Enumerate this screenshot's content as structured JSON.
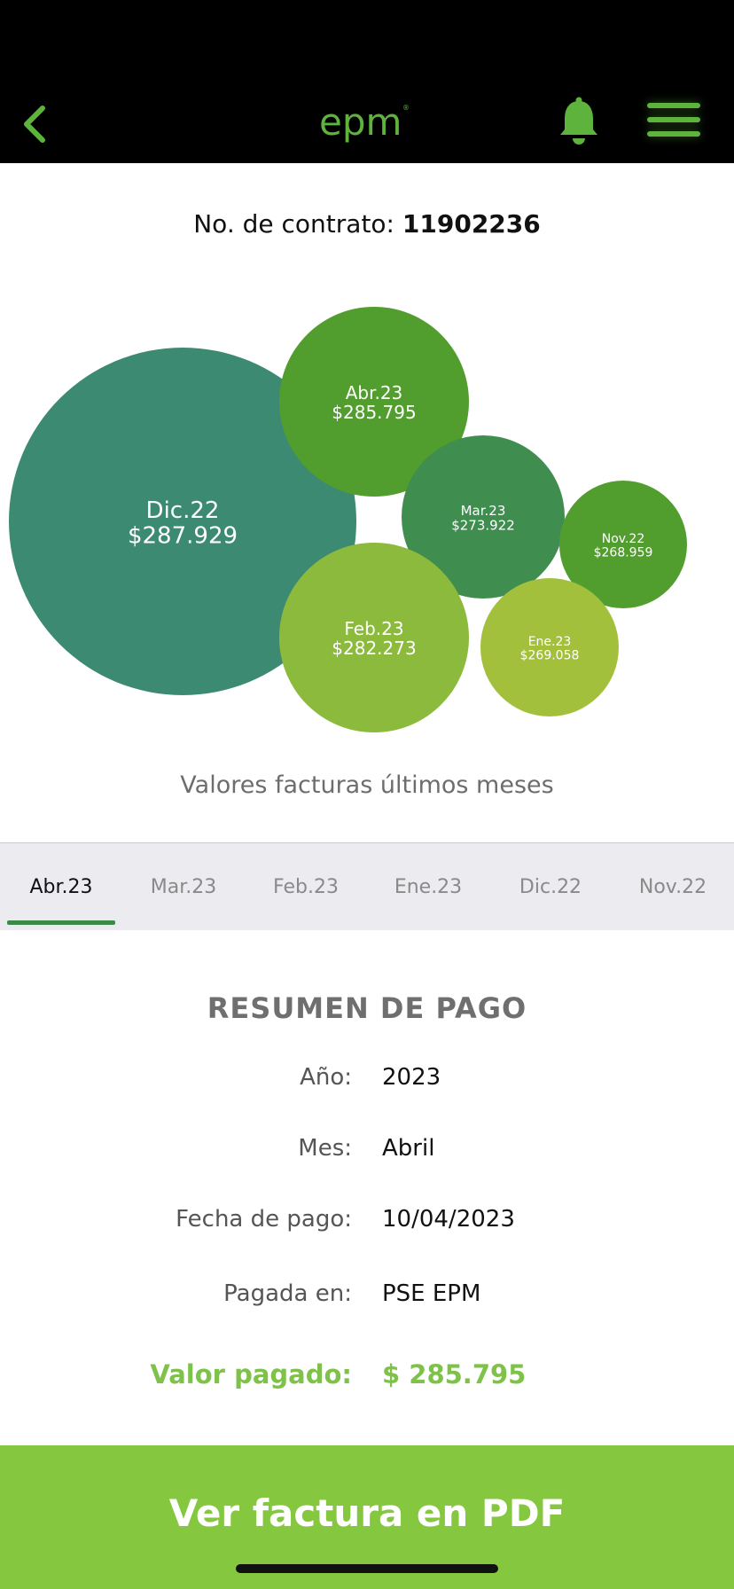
{
  "header": {
    "logo_text": "epm",
    "icons": [
      "back-chevron-icon",
      "bell-icon",
      "hamburger-menu-icon"
    ],
    "brand_color": "#5db33c"
  },
  "contract": {
    "label": "No. de contrato:",
    "number": "11902236"
  },
  "chart_data": {
    "type": "bubble",
    "caption": "Valores facturas últimos meses",
    "series": [
      {
        "label": "Dic.22",
        "value_text": "$287.929",
        "value": 287929,
        "color": "#3d8a72"
      },
      {
        "label": "Abr.23",
        "value_text": "$285.795",
        "value": 285795,
        "color": "#519e2f"
      },
      {
        "label": "Mar.23",
        "value_text": "$273.922",
        "value": 273922,
        "color": "#3f8d4f"
      },
      {
        "label": "Nov.22",
        "value_text": "$268.959",
        "value": 268959,
        "color": "#519e2f"
      },
      {
        "label": "Feb.23",
        "value_text": "$282.273",
        "value": 282273,
        "color": "#8cba3c"
      },
      {
        "label": "Ene.23",
        "value_text": "$269.058",
        "value": 269058,
        "color": "#a2c03c"
      }
    ]
  },
  "tabs": [
    {
      "label": "Abr.23",
      "active": true
    },
    {
      "label": "Mar.23",
      "active": false
    },
    {
      "label": "Feb.23",
      "active": false
    },
    {
      "label": "Ene.23",
      "active": false
    },
    {
      "label": "Dic.22",
      "active": false
    },
    {
      "label": "Nov.22",
      "active": false
    }
  ],
  "summary": {
    "title": "RESUMEN DE PAGO",
    "rows": [
      {
        "label": "Año:",
        "value": "2023"
      },
      {
        "label": "Mes:",
        "value": "Abril"
      },
      {
        "label": "Fecha de pago:",
        "value": "10/04/2023"
      },
      {
        "label": "Pagada en:",
        "value": "PSE EPM"
      }
    ],
    "total": {
      "label": "Valor pagado:",
      "value": "$ 285.795"
    }
  },
  "pdf_button": {
    "label": "Ver factura en PDF",
    "color": "#86c740"
  }
}
